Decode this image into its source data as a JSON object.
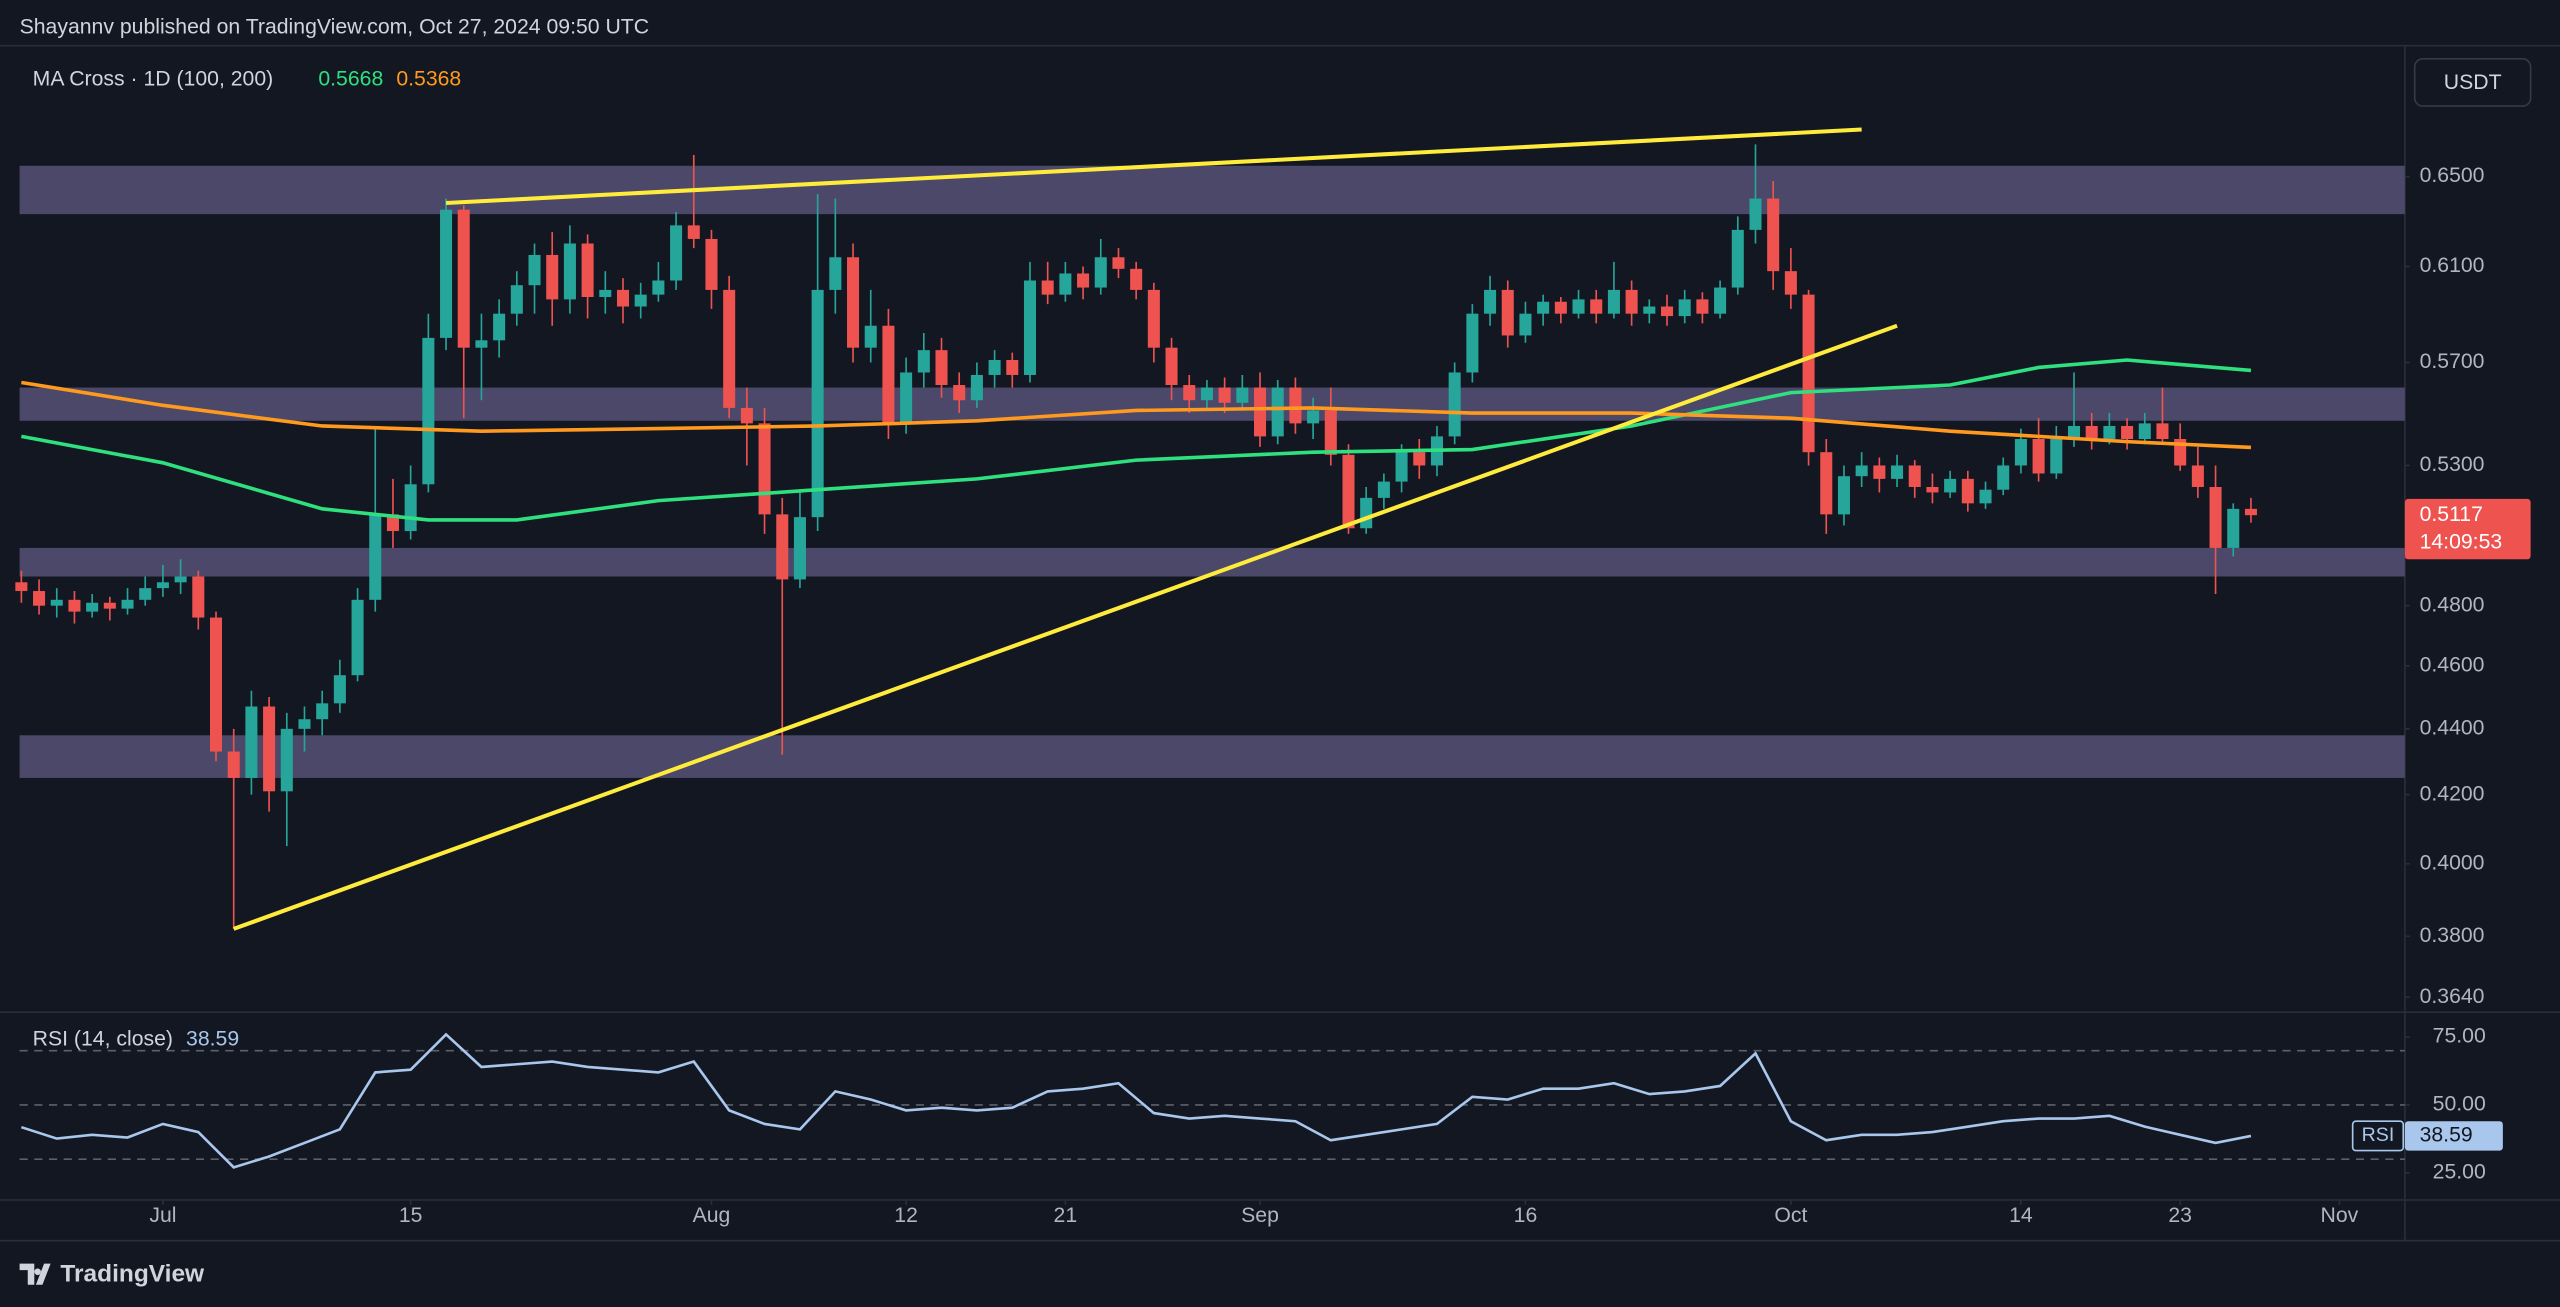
{
  "header": {
    "byline": "Shayannv published on TradingView.com, Oct 27, 2024 09:50 UTC"
  },
  "footer": {
    "brand": "TradingView"
  },
  "chart_data": [
    {
      "type": "candlestick",
      "title": "MA Cross · 1D (100, 200)",
      "currency": "USDT",
      "countdown": "14:09:53",
      "log_scale": true,
      "up_color": "#26a69a",
      "down_color": "#ef5350",
      "x": [
        -8,
        -7,
        -6,
        -5,
        -4,
        -3,
        -2,
        -1,
        0,
        1,
        2,
        3,
        4,
        5,
        6,
        7,
        8,
        9,
        10,
        11,
        12,
        13,
        14,
        15,
        16,
        17,
        18,
        19,
        20,
        21,
        22,
        23,
        24,
        25,
        26,
        27,
        28,
        29,
        30,
        31,
        32,
        33,
        34,
        35,
        36,
        37,
        38,
        39,
        40,
        41,
        42,
        43,
        44,
        45,
        46,
        47,
        48,
        49,
        50,
        51,
        52,
        53,
        54,
        55,
        56,
        57,
        58,
        59,
        60,
        61,
        62,
        63,
        64,
        65,
        66,
        67,
        68,
        69,
        70,
        71,
        72,
        73,
        74,
        75,
        76,
        77,
        78,
        79,
        80,
        81,
        82,
        83,
        84,
        85,
        86,
        87,
        88,
        89,
        90,
        91,
        92,
        93,
        94,
        95,
        96,
        97,
        98,
        99,
        100,
        101,
        102,
        103,
        104,
        105,
        106,
        107,
        108,
        109,
        110,
        111,
        112,
        113,
        114,
        115,
        116,
        117,
        118
      ],
      "candles": [
        [
          0.488,
          0.492,
          0.481,
          0.485
        ],
        [
          0.485,
          0.489,
          0.477,
          0.48
        ],
        [
          0.48,
          0.486,
          0.476,
          0.482
        ],
        [
          0.482,
          0.485,
          0.474,
          0.478
        ],
        [
          0.478,
          0.484,
          0.476,
          0.481
        ],
        [
          0.481,
          0.483,
          0.475,
          0.479
        ],
        [
          0.479,
          0.486,
          0.477,
          0.482
        ],
        [
          0.482,
          0.49,
          0.48,
          0.486
        ],
        [
          0.486,
          0.494,
          0.483,
          0.488
        ],
        [
          0.488,
          0.496,
          0.484,
          0.49
        ],
        [
          0.49,
          0.492,
          0.472,
          0.476
        ],
        [
          0.476,
          0.478,
          0.43,
          0.433
        ],
        [
          0.433,
          0.44,
          0.382,
          0.425
        ],
        [
          0.425,
          0.452,
          0.42,
          0.447
        ],
        [
          0.447,
          0.45,
          0.415,
          0.421
        ],
        [
          0.421,
          0.445,
          0.405,
          0.44
        ],
        [
          0.44,
          0.447,
          0.433,
          0.443
        ],
        [
          0.443,
          0.452,
          0.438,
          0.448
        ],
        [
          0.448,
          0.462,
          0.445,
          0.457
        ],
        [
          0.457,
          0.486,
          0.455,
          0.482
        ],
        [
          0.482,
          0.545,
          0.478,
          0.512
        ],
        [
          0.512,
          0.525,
          0.5,
          0.506
        ],
        [
          0.506,
          0.53,
          0.503,
          0.523
        ],
        [
          0.523,
          0.59,
          0.52,
          0.58
        ],
        [
          0.58,
          0.64,
          0.575,
          0.635
        ],
        [
          0.635,
          0.637,
          0.548,
          0.576
        ],
        [
          0.576,
          0.59,
          0.555,
          0.579
        ],
        [
          0.579,
          0.596,
          0.572,
          0.59
        ],
        [
          0.59,
          0.608,
          0.585,
          0.602
        ],
        [
          0.602,
          0.62,
          0.59,
          0.615
        ],
        [
          0.615,
          0.625,
          0.585,
          0.596
        ],
        [
          0.596,
          0.628,
          0.59,
          0.62
        ],
        [
          0.62,
          0.624,
          0.588,
          0.597
        ],
        [
          0.597,
          0.608,
          0.59,
          0.6
        ],
        [
          0.6,
          0.605,
          0.586,
          0.593
        ],
        [
          0.593,
          0.603,
          0.588,
          0.598
        ],
        [
          0.598,
          0.612,
          0.595,
          0.604
        ],
        [
          0.604,
          0.634,
          0.6,
          0.628
        ],
        [
          0.628,
          0.66,
          0.618,
          0.622
        ],
        [
          0.622,
          0.626,
          0.592,
          0.6
        ],
        [
          0.6,
          0.606,
          0.548,
          0.552
        ],
        [
          0.552,
          0.56,
          0.53,
          0.546
        ],
        [
          0.546,
          0.552,
          0.505,
          0.512
        ],
        [
          0.512,
          0.518,
          0.432,
          0.489
        ],
        [
          0.489,
          0.52,
          0.486,
          0.511
        ],
        [
          0.511,
          0.642,
          0.506,
          0.6
        ],
        [
          0.6,
          0.64,
          0.59,
          0.614
        ],
        [
          0.614,
          0.62,
          0.57,
          0.576
        ],
        [
          0.576,
          0.6,
          0.57,
          0.585
        ],
        [
          0.585,
          0.592,
          0.54,
          0.546
        ],
        [
          0.546,
          0.572,
          0.542,
          0.566
        ],
        [
          0.566,
          0.582,
          0.56,
          0.575
        ],
        [
          0.575,
          0.58,
          0.556,
          0.561
        ],
        [
          0.561,
          0.566,
          0.55,
          0.555
        ],
        [
          0.555,
          0.57,
          0.552,
          0.565
        ],
        [
          0.565,
          0.575,
          0.56,
          0.571
        ],
        [
          0.571,
          0.574,
          0.56,
          0.565
        ],
        [
          0.565,
          0.612,
          0.562,
          0.604
        ],
        [
          0.604,
          0.612,
          0.594,
          0.598
        ],
        [
          0.598,
          0.612,
          0.595,
          0.607
        ],
        [
          0.607,
          0.61,
          0.596,
          0.601
        ],
        [
          0.601,
          0.622,
          0.598,
          0.614
        ],
        [
          0.614,
          0.618,
          0.605,
          0.609
        ],
        [
          0.609,
          0.612,
          0.596,
          0.6
        ],
        [
          0.6,
          0.603,
          0.57,
          0.576
        ],
        [
          0.576,
          0.58,
          0.555,
          0.561
        ],
        [
          0.561,
          0.565,
          0.55,
          0.555
        ],
        [
          0.555,
          0.563,
          0.551,
          0.56
        ],
        [
          0.56,
          0.564,
          0.55,
          0.554
        ],
        [
          0.554,
          0.565,
          0.551,
          0.56
        ],
        [
          0.56,
          0.566,
          0.537,
          0.541
        ],
        [
          0.541,
          0.563,
          0.538,
          0.56
        ],
        [
          0.56,
          0.564,
          0.542,
          0.546
        ],
        [
          0.546,
          0.556,
          0.54,
          0.551
        ],
        [
          0.551,
          0.56,
          0.53,
          0.534
        ],
        [
          0.534,
          0.538,
          0.505,
          0.507
        ],
        [
          0.507,
          0.522,
          0.505,
          0.518
        ],
        [
          0.518,
          0.527,
          0.514,
          0.524
        ],
        [
          0.524,
          0.538,
          0.52,
          0.535
        ],
        [
          0.535,
          0.54,
          0.525,
          0.53
        ],
        [
          0.53,
          0.545,
          0.526,
          0.541
        ],
        [
          0.541,
          0.57,
          0.538,
          0.566
        ],
        [
          0.566,
          0.594,
          0.562,
          0.59
        ],
        [
          0.59,
          0.606,
          0.585,
          0.6
        ],
        [
          0.6,
          0.604,
          0.576,
          0.581
        ],
        [
          0.581,
          0.595,
          0.578,
          0.59
        ],
        [
          0.59,
          0.598,
          0.585,
          0.595
        ],
        [
          0.595,
          0.597,
          0.586,
          0.59
        ],
        [
          0.59,
          0.6,
          0.588,
          0.596
        ],
        [
          0.596,
          0.6,
          0.586,
          0.59
        ],
        [
          0.59,
          0.612,
          0.588,
          0.6
        ],
        [
          0.6,
          0.604,
          0.585,
          0.59
        ],
        [
          0.59,
          0.596,
          0.586,
          0.593
        ],
        [
          0.593,
          0.598,
          0.585,
          0.589
        ],
        [
          0.589,
          0.6,
          0.586,
          0.596
        ],
        [
          0.596,
          0.599,
          0.586,
          0.59
        ],
        [
          0.59,
          0.604,
          0.588,
          0.601
        ],
        [
          0.601,
          0.632,
          0.598,
          0.626
        ],
        [
          0.626,
          0.665,
          0.62,
          0.64
        ],
        [
          0.64,
          0.648,
          0.6,
          0.608
        ],
        [
          0.608,
          0.618,
          0.592,
          0.598
        ],
        [
          0.598,
          0.6,
          0.53,
          0.535
        ],
        [
          0.535,
          0.54,
          0.505,
          0.512
        ],
        [
          0.512,
          0.53,
          0.508,
          0.526
        ],
        [
          0.526,
          0.535,
          0.522,
          0.53
        ],
        [
          0.53,
          0.533,
          0.52,
          0.525
        ],
        [
          0.525,
          0.534,
          0.522,
          0.53
        ],
        [
          0.53,
          0.532,
          0.518,
          0.522
        ],
        [
          0.522,
          0.527,
          0.516,
          0.52
        ],
        [
          0.52,
          0.528,
          0.518,
          0.525
        ],
        [
          0.525,
          0.528,
          0.513,
          0.516
        ],
        [
          0.516,
          0.524,
          0.514,
          0.521
        ],
        [
          0.521,
          0.533,
          0.519,
          0.53
        ],
        [
          0.53,
          0.544,
          0.527,
          0.54
        ],
        [
          0.54,
          0.548,
          0.524,
          0.527
        ],
        [
          0.527,
          0.545,
          0.525,
          0.54
        ],
        [
          0.54,
          0.566,
          0.537,
          0.545
        ],
        [
          0.545,
          0.55,
          0.536,
          0.54
        ],
        [
          0.54,
          0.55,
          0.538,
          0.545
        ],
        [
          0.545,
          0.548,
          0.536,
          0.54
        ],
        [
          0.54,
          0.55,
          0.538,
          0.546
        ],
        [
          0.546,
          0.56,
          0.538,
          0.54
        ],
        [
          0.54,
          0.546,
          0.528,
          0.53
        ],
        [
          0.53,
          0.537,
          0.518,
          0.522
        ],
        [
          0.522,
          0.53,
          0.484,
          0.5
        ],
        [
          0.5,
          0.516,
          0.497,
          0.514
        ],
        [
          0.514,
          0.518,
          0.509,
          0.5117
        ]
      ],
      "series": [
        {
          "color": "#2fe07f",
          "x": [
            -8,
            0,
            9,
            15,
            20,
            28,
            37,
            46,
            55,
            65,
            74,
            83,
            92,
            101,
            106,
            111,
            118
          ],
          "values": [
            0.541,
            0.531,
            0.514,
            0.51,
            0.51,
            0.517,
            0.521,
            0.525,
            0.532,
            0.535,
            0.536,
            0.545,
            0.558,
            0.561,
            0.568,
            0.571,
            0.5668
          ]
        },
        {
          "color": "#ff9a1f",
          "x": [
            -8,
            0,
            9,
            18,
            28,
            37,
            46,
            55,
            65,
            74,
            83,
            92,
            101,
            111,
            118
          ],
          "values": [
            0.562,
            0.553,
            0.545,
            0.543,
            0.544,
            0.545,
            0.547,
            0.551,
            0.552,
            0.55,
            0.55,
            0.548,
            0.543,
            0.539,
            0.5368
          ]
        }
      ],
      "zones": [
        [
          0.633,
          0.655
        ],
        [
          0.547,
          0.56
        ],
        [
          0.49,
          0.5
        ],
        [
          0.425,
          0.438
        ]
      ],
      "zone_color": "#4b4869",
      "trendlines": [
        {
          "x": [
            16,
            96
          ],
          "y": [
            0.638,
            0.672
          ]
        },
        {
          "x": [
            4,
            98
          ],
          "y": [
            0.382,
            0.585
          ]
        }
      ],
      "trendline_color": "#ffeb3b",
      "xlim": [
        -8.1,
        126.7
      ],
      "xticks": [
        {
          "value": 0,
          "label": "Jul"
        },
        {
          "value": 14,
          "label": "15"
        },
        {
          "value": 31,
          "label": "Aug"
        },
        {
          "value": 42,
          "label": "12"
        },
        {
          "value": 51,
          "label": "21"
        },
        {
          "value": 62,
          "label": "Sep"
        },
        {
          "value": 77,
          "label": "16"
        },
        {
          "value": 92,
          "label": "Oct"
        },
        {
          "value": 105,
          "label": "14"
        },
        {
          "value": 114,
          "label": "23"
        },
        {
          "value": 123,
          "label": "Nov"
        }
      ],
      "ylim": [
        0.361,
        0.713
      ],
      "yticks": [
        {
          "value": 0.65,
          "label": "0.6500"
        },
        {
          "value": 0.61,
          "label": "0.6100"
        },
        {
          "value": 0.57,
          "label": "0.5700"
        },
        {
          "value": 0.53,
          "label": "0.5300"
        },
        {
          "value": 0.48,
          "label": "0.4800"
        },
        {
          "value": 0.46,
          "label": "0.4600"
        },
        {
          "value": 0.44,
          "label": "0.4400"
        },
        {
          "value": 0.42,
          "label": "0.4200"
        },
        {
          "value": 0.4,
          "label": "0.4000"
        },
        {
          "value": 0.38,
          "label": "0.3800"
        },
        {
          "value": 0.364,
          "label": "0.3640"
        }
      ]
    },
    {
      "type": "line",
      "title": "RSI (14, close)",
      "label": "RSI",
      "color": "#a9c7ec",
      "x": [
        -8,
        -6,
        -4,
        -2,
        0,
        2,
        4,
        6,
        8,
        10,
        12,
        14,
        16,
        18,
        20,
        22,
        24,
        26,
        28,
        30,
        32,
        34,
        36,
        38,
        40,
        42,
        44,
        46,
        48,
        50,
        52,
        54,
        56,
        58,
        60,
        62,
        64,
        66,
        68,
        70,
        72,
        74,
        76,
        78,
        80,
        82,
        84,
        86,
        88,
        90,
        92,
        94,
        96,
        98,
        100,
        102,
        104,
        106,
        108,
        110,
        112,
        114,
        116,
        118
      ],
      "values": [
        41.8,
        37.6,
        39,
        38,
        43,
        40,
        27,
        31,
        36,
        41,
        62,
        63,
        76,
        64,
        65,
        66,
        64,
        63,
        62,
        66,
        48,
        43,
        41,
        55,
        52,
        48,
        49,
        48,
        49,
        55,
        56,
        58,
        47,
        45,
        46,
        45,
        44,
        37,
        39,
        41,
        43,
        53,
        52,
        56,
        56,
        58,
        54,
        55,
        57,
        69,
        44,
        37,
        39,
        39,
        40,
        42,
        44,
        45,
        45,
        46,
        42,
        39,
        36,
        38.59
      ],
      "bands": [
        70,
        50,
        30
      ],
      "ylim": [
        15,
        83
      ],
      "yticks": [
        {
          "value": 75,
          "label": "75.00"
        },
        {
          "value": 50,
          "label": "50.00"
        },
        {
          "value": 25,
          "label": "25.00"
        }
      ]
    }
  ]
}
